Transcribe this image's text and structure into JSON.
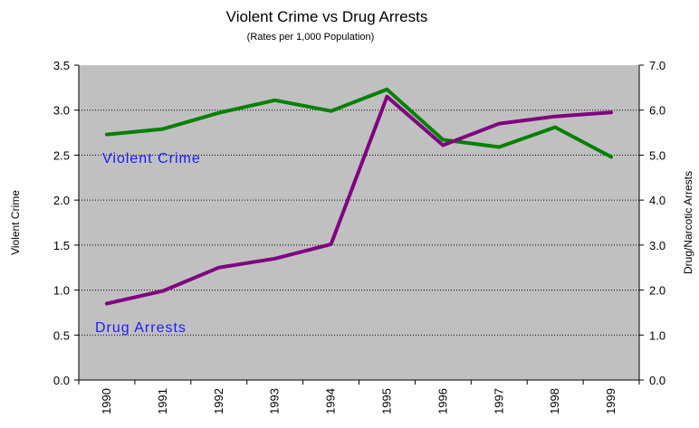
{
  "chart_data": {
    "type": "line",
    "title": "Violent Crime vs Drug Arrests",
    "subtitle": "(Rates per 1,000 Population)",
    "ylabel": "Violent Crime",
    "y2label": "Drug/Narcotic Arrests",
    "x": [
      "1990",
      "1991",
      "1992",
      "1993",
      "1994",
      "1995",
      "1996",
      "1997",
      "1998",
      "1999"
    ],
    "ylim": [
      0,
      3.5
    ],
    "y2lim": [
      0,
      7
    ],
    "yticks": [
      "0.0",
      "0.5",
      "1.0",
      "1.5",
      "2.0",
      "2.5",
      "3.0",
      "3.5"
    ],
    "y2ticks": [
      "0.0",
      "1.0",
      "2.0",
      "3.0",
      "4.0",
      "5.0",
      "6.0",
      "7.0"
    ],
    "grid": "horizontal dotted",
    "plot_background": "#c0c0c0",
    "series": [
      {
        "name": "Violent Crime",
        "axis": "left",
        "color": "#008000",
        "label_color": "#1a1aff",
        "values": [
          2.73,
          2.79,
          2.97,
          3.11,
          2.99,
          3.23,
          2.67,
          2.59,
          2.81,
          2.48
        ]
      },
      {
        "name": "Drug Arrests",
        "axis": "right",
        "color": "#800080",
        "label_color": "#1a1aff",
        "values": [
          1.7,
          1.98,
          2.5,
          2.7,
          3.02,
          6.3,
          5.22,
          5.7,
          5.86,
          5.95
        ]
      }
    ]
  }
}
